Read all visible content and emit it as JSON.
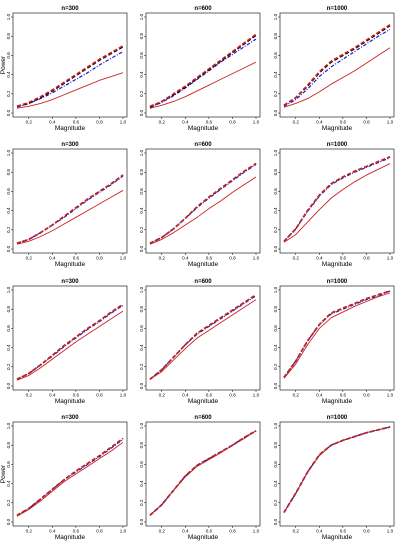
{
  "chart_data": {
    "type": "line",
    "xlabel": "Magnitude",
    "ylabel": "Power",
    "xlim": [
      0.1,
      1.0
    ],
    "ylim": [
      0.0,
      1.0
    ],
    "xticks": [
      "0.2",
      "0.4",
      "0.6",
      "0.8",
      "1.0"
    ],
    "yticks": [
      "0.0",
      "0.2",
      "0.4",
      "0.6",
      "0.8",
      "1.0"
    ],
    "x": [
      0.1,
      0.2,
      0.3,
      0.4,
      0.5,
      0.6,
      0.7,
      0.8,
      0.9,
      1.0
    ],
    "series_styles": [
      {
        "color": "#cc2222",
        "dash": "solid"
      },
      {
        "color": "#1a1acc",
        "dash": "dashdot"
      },
      {
        "color": "#000000",
        "dash": "dashed"
      },
      {
        "color": "#cc2222",
        "dash": "dashed"
      }
    ],
    "panels": [
      {
        "title": "n=300",
        "series": [
          {
            "values": [
              0.05,
              0.07,
              0.1,
              0.14,
              0.19,
              0.24,
              0.29,
              0.34,
              0.38,
              0.42
            ]
          },
          {
            "values": [
              0.06,
              0.1,
              0.15,
              0.21,
              0.28,
              0.35,
              0.42,
              0.5,
              0.57,
              0.64
            ]
          },
          {
            "values": [
              0.07,
              0.1,
              0.16,
              0.23,
              0.31,
              0.39,
              0.47,
              0.55,
              0.62,
              0.69
            ]
          },
          {
            "values": [
              0.07,
              0.11,
              0.17,
              0.24,
              0.32,
              0.4,
              0.48,
              0.56,
              0.63,
              0.7
            ]
          }
        ]
      },
      {
        "title": "n=600",
        "series": [
          {
            "values": [
              0.05,
              0.08,
              0.12,
              0.17,
              0.23,
              0.29,
              0.35,
              0.41,
              0.47,
              0.53
            ]
          },
          {
            "values": [
              0.06,
              0.11,
              0.18,
              0.26,
              0.35,
              0.44,
              0.53,
              0.61,
              0.69,
              0.77
            ]
          },
          {
            "values": [
              0.06,
              0.12,
              0.19,
              0.27,
              0.36,
              0.45,
              0.54,
              0.63,
              0.72,
              0.81
            ]
          },
          {
            "values": [
              0.07,
              0.12,
              0.2,
              0.28,
              0.37,
              0.46,
              0.55,
              0.64,
              0.73,
              0.82
            ]
          }
        ]
      },
      {
        "title": "n=1000",
        "series": [
          {
            "values": [
              0.06,
              0.1,
              0.15,
              0.22,
              0.3,
              0.37,
              0.44,
              0.52,
              0.6,
              0.68
            ]
          },
          {
            "values": [
              0.07,
              0.14,
              0.25,
              0.38,
              0.48,
              0.56,
              0.64,
              0.72,
              0.8,
              0.87
            ]
          },
          {
            "values": [
              0.08,
              0.16,
              0.28,
              0.42,
              0.53,
              0.6,
              0.67,
              0.75,
              0.83,
              0.91
            ]
          },
          {
            "values": [
              0.08,
              0.16,
              0.29,
              0.43,
              0.54,
              0.61,
              0.68,
              0.76,
              0.84,
              0.92
            ]
          }
        ]
      },
      {
        "title": "n=300",
        "series": [
          {
            "values": [
              0.05,
              0.08,
              0.13,
              0.19,
              0.26,
              0.33,
              0.4,
              0.47,
              0.54,
              0.61
            ]
          },
          {
            "values": [
              0.06,
              0.1,
              0.17,
              0.25,
              0.33,
              0.42,
              0.51,
              0.59,
              0.67,
              0.76
            ]
          },
          {
            "values": [
              0.06,
              0.1,
              0.17,
              0.25,
              0.34,
              0.43,
              0.52,
              0.6,
              0.68,
              0.77
            ]
          },
          {
            "values": [
              0.06,
              0.1,
              0.17,
              0.25,
              0.34,
              0.43,
              0.52,
              0.6,
              0.68,
              0.77
            ]
          }
        ]
      },
      {
        "title": "n=600",
        "series": [
          {
            "values": [
              0.05,
              0.1,
              0.17,
              0.25,
              0.33,
              0.42,
              0.5,
              0.59,
              0.67,
              0.75
            ]
          },
          {
            "values": [
              0.06,
              0.12,
              0.21,
              0.32,
              0.43,
              0.53,
              0.62,
              0.71,
              0.8,
              0.88
            ]
          },
          {
            "values": [
              0.06,
              0.12,
              0.21,
              0.32,
              0.44,
              0.54,
              0.63,
              0.72,
              0.81,
              0.89
            ]
          },
          {
            "values": [
              0.06,
              0.12,
              0.21,
              0.32,
              0.44,
              0.54,
              0.63,
              0.72,
              0.81,
              0.89
            ]
          }
        ]
      },
      {
        "title": "n=1000",
        "series": [
          {
            "values": [
              0.07,
              0.15,
              0.28,
              0.41,
              0.53,
              0.62,
              0.7,
              0.77,
              0.83,
              0.89
            ]
          },
          {
            "values": [
              0.08,
              0.21,
              0.39,
              0.55,
              0.67,
              0.74,
              0.8,
              0.85,
              0.9,
              0.95
            ]
          },
          {
            "values": [
              0.08,
              0.21,
              0.4,
              0.56,
              0.68,
              0.75,
              0.81,
              0.86,
              0.91,
              0.96
            ]
          },
          {
            "values": [
              0.08,
              0.21,
              0.4,
              0.56,
              0.68,
              0.75,
              0.81,
              0.86,
              0.91,
              0.96
            ]
          }
        ]
      },
      {
        "title": "n=300",
        "series": [
          {
            "values": [
              0.06,
              0.11,
              0.19,
              0.28,
              0.37,
              0.46,
              0.54,
              0.62,
              0.7,
              0.78
            ]
          },
          {
            "values": [
              0.07,
              0.13,
              0.22,
              0.31,
              0.41,
              0.5,
              0.59,
              0.67,
              0.76,
              0.84
            ]
          },
          {
            "values": [
              0.07,
              0.13,
              0.22,
              0.32,
              0.42,
              0.51,
              0.6,
              0.68,
              0.77,
              0.85
            ]
          },
          {
            "values": [
              0.07,
              0.13,
              0.22,
              0.32,
              0.42,
              0.51,
              0.6,
              0.68,
              0.77,
              0.85
            ]
          }
        ]
      },
      {
        "title": "n=600",
        "series": [
          {
            "values": [
              0.07,
              0.15,
              0.27,
              0.39,
              0.5,
              0.58,
              0.66,
              0.74,
              0.82,
              0.9
            ]
          },
          {
            "values": [
              0.07,
              0.17,
              0.3,
              0.43,
              0.54,
              0.62,
              0.7,
              0.78,
              0.86,
              0.94
            ]
          },
          {
            "values": [
              0.07,
              0.17,
              0.3,
              0.43,
              0.55,
              0.63,
              0.71,
              0.79,
              0.87,
              0.95
            ]
          },
          {
            "values": [
              0.07,
              0.17,
              0.3,
              0.43,
              0.55,
              0.63,
              0.71,
              0.79,
              0.87,
              0.95
            ]
          }
        ]
      },
      {
        "title": "n=1000",
        "series": [
          {
            "values": [
              0.08,
              0.23,
              0.43,
              0.6,
              0.71,
              0.77,
              0.83,
              0.88,
              0.93,
              0.97
            ]
          },
          {
            "values": [
              0.09,
              0.26,
              0.47,
              0.64,
              0.75,
              0.8,
              0.85,
              0.9,
              0.94,
              0.99
            ]
          },
          {
            "values": [
              0.09,
              0.26,
              0.47,
              0.64,
              0.76,
              0.81,
              0.86,
              0.91,
              0.95,
              0.99
            ]
          },
          {
            "values": [
              0.09,
              0.26,
              0.47,
              0.64,
              0.76,
              0.81,
              0.86,
              0.91,
              0.95,
              0.99
            ]
          }
        ]
      },
      {
        "title": "n=300",
        "series": [
          {
            "values": [
              0.06,
              0.13,
              0.22,
              0.32,
              0.42,
              0.5,
              0.58,
              0.66,
              0.74,
              0.83
            ]
          },
          {
            "values": [
              0.07,
              0.14,
              0.24,
              0.34,
              0.44,
              0.52,
              0.6,
              0.68,
              0.77,
              0.86
            ]
          },
          {
            "values": [
              0.07,
              0.14,
              0.24,
              0.34,
              0.44,
              0.53,
              0.61,
              0.69,
              0.78,
              0.87
            ]
          },
          {
            "values": [
              0.07,
              0.14,
              0.24,
              0.34,
              0.44,
              0.53,
              0.61,
              0.69,
              0.78,
              0.87
            ]
          }
        ]
      },
      {
        "title": "n=600",
        "series": [
          {
            "values": [
              0.07,
              0.18,
              0.33,
              0.47,
              0.58,
              0.65,
              0.72,
              0.8,
              0.87,
              0.95
            ]
          },
          {
            "values": [
              0.07,
              0.18,
              0.33,
              0.48,
              0.59,
              0.66,
              0.73,
              0.8,
              0.88,
              0.95
            ]
          },
          {
            "values": [
              0.07,
              0.18,
              0.33,
              0.48,
              0.59,
              0.66,
              0.73,
              0.8,
              0.88,
              0.95
            ]
          },
          {
            "values": [
              0.07,
              0.18,
              0.33,
              0.48,
              0.59,
              0.66,
              0.73,
              0.8,
              0.88,
              0.95
            ]
          }
        ]
      },
      {
        "title": "n=1000",
        "series": [
          {
            "values": [
              0.1,
              0.3,
              0.52,
              0.69,
              0.8,
              0.85,
              0.89,
              0.93,
              0.96,
              0.99
            ]
          },
          {
            "values": [
              0.1,
              0.3,
              0.52,
              0.7,
              0.8,
              0.85,
              0.89,
              0.93,
              0.96,
              0.99
            ]
          },
          {
            "values": [
              0.1,
              0.3,
              0.52,
              0.7,
              0.8,
              0.85,
              0.89,
              0.93,
              0.96,
              0.99
            ]
          },
          {
            "values": [
              0.1,
              0.3,
              0.52,
              0.7,
              0.8,
              0.85,
              0.89,
              0.93,
              0.96,
              0.99
            ]
          }
        ]
      }
    ]
  }
}
